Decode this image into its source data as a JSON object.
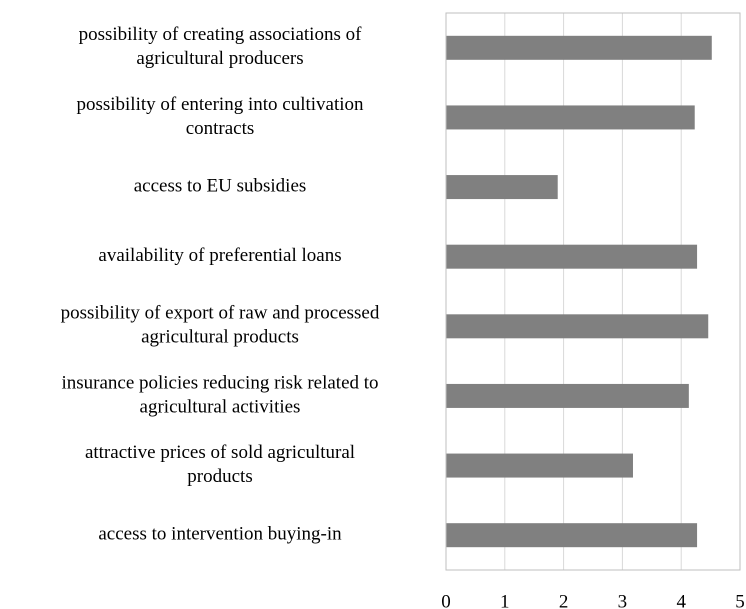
{
  "chart_data": {
    "type": "bar",
    "orientation": "horizontal",
    "categories": [
      [
        "possibility of creating associations of",
        "agricultural producers"
      ],
      [
        "possibility of entering into cultivation",
        "contracts"
      ],
      [
        "access to EU subsidies"
      ],
      [
        "availability of preferential loans"
      ],
      [
        "possibility of export of raw and processed",
        "agricultural products"
      ],
      [
        "insurance policies reducing risk related to",
        "agricultural activities"
      ],
      [
        "attractive prices of sold agricultural",
        "products"
      ],
      [
        "access to intervention buying-in"
      ]
    ],
    "values": [
      4.52,
      4.23,
      1.9,
      4.27,
      4.46,
      4.13,
      3.18,
      4.27
    ],
    "color": "#808080",
    "xlim": [
      0,
      5
    ],
    "xticks": [
      0,
      1,
      2,
      3,
      4,
      5
    ],
    "grid": true
  }
}
